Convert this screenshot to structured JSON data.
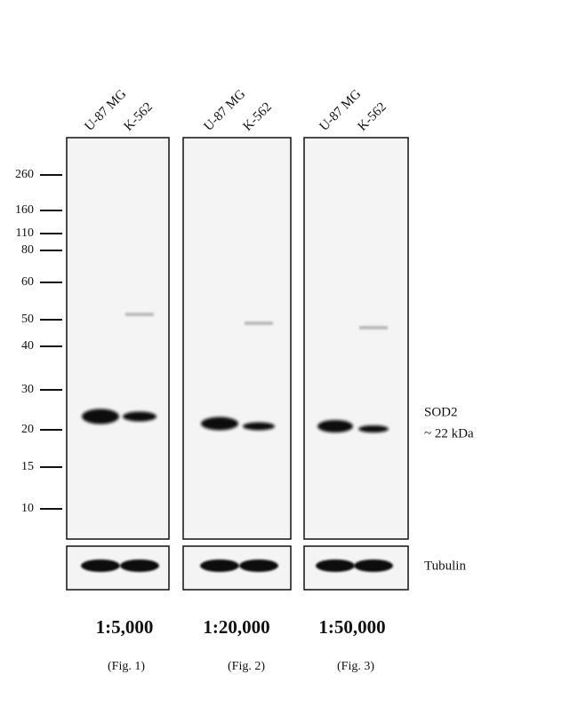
{
  "lanes": [
    "U-87 MG",
    "K-562"
  ],
  "markers": [
    "260",
    "160",
    "110",
    "80",
    "60",
    "50",
    "40",
    "30",
    "20",
    "15",
    "10"
  ],
  "target": {
    "name": "SOD2",
    "size": "~ 22 kDa"
  },
  "loading_control": "Tubulin",
  "panels": [
    {
      "dilution": "1:5,000",
      "figure": "(Fig. 1)"
    },
    {
      "dilution": "1:20,000",
      "figure": "(Fig. 2)"
    },
    {
      "dilution": "1:50,000",
      "figure": "(Fig. 3)"
    }
  ]
}
